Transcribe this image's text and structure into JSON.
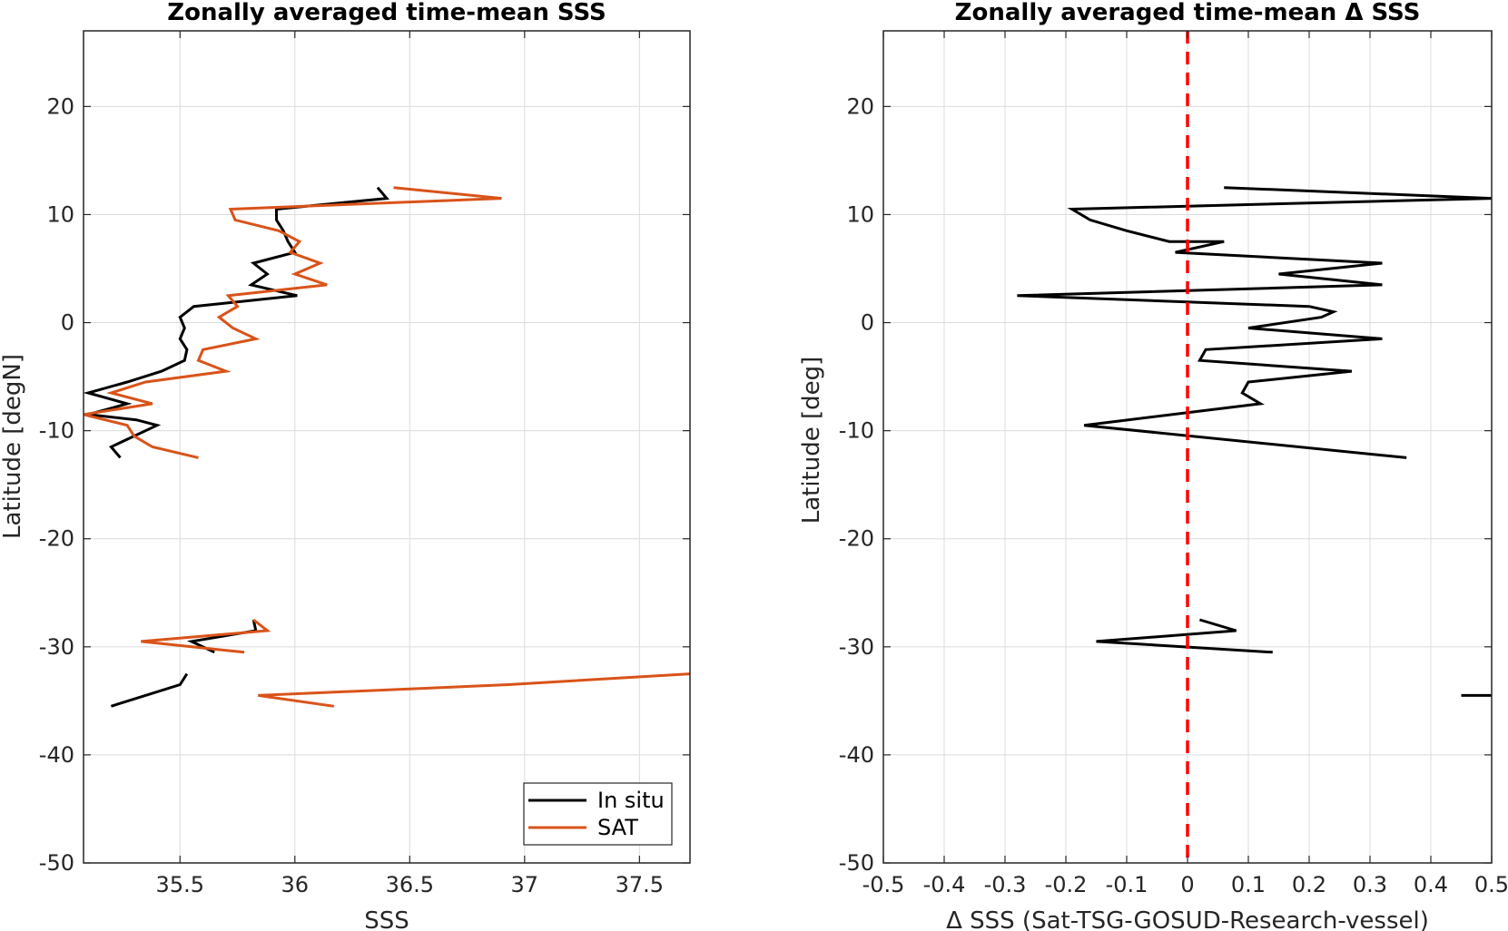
{
  "chart_data": [
    {
      "type": "line",
      "title": "Zonally averaged time-mean SSS",
      "xlabel": "SSS",
      "ylabel": "Latitude [degN]",
      "xlim": [
        35.08,
        37.72
      ],
      "ylim": [
        -50,
        27
      ],
      "xticks": [
        35.5,
        36,
        36.5,
        37,
        37.5
      ],
      "xtick_labels": [
        "35.5",
        "36",
        "36.5",
        "37",
        "37.5"
      ],
      "yticks": [
        -50,
        -40,
        -30,
        -20,
        -10,
        0,
        10,
        20
      ],
      "ytick_labels": [
        "-50",
        "-40",
        "-30",
        "-20",
        "-10",
        "0",
        "10",
        "20"
      ],
      "grid": true,
      "legend": "bottom-right",
      "series": [
        {
          "name": "In situ",
          "color": "#000000",
          "segments": [
            [
              [
                36.36,
                12.5
              ],
              [
                36.4,
                11.5
              ],
              [
                35.92,
                10.5
              ],
              [
                35.92,
                9.5
              ],
              [
                35.95,
                8.5
              ],
              [
                35.97,
                7.5
              ],
              [
                36.0,
                6.5
              ],
              [
                35.82,
                5.5
              ],
              [
                35.88,
                4.5
              ],
              [
                35.81,
                3.5
              ],
              [
                36.01,
                2.5
              ],
              [
                35.56,
                1.5
              ],
              [
                35.5,
                0.5
              ],
              [
                35.52,
                -0.5
              ],
              [
                35.5,
                -1.5
              ],
              [
                35.53,
                -2.5
              ],
              [
                35.52,
                -3.5
              ],
              [
                35.42,
                -4.5
              ],
              [
                35.27,
                -5.5
              ],
              [
                35.1,
                -6.5
              ],
              [
                35.27,
                -7.5
              ],
              [
                35.1,
                -8.5
              ],
              [
                35.31,
                -9.0
              ],
              [
                35.4,
                -9.5
              ],
              [
                35.2,
                -11.5
              ],
              [
                35.24,
                -12.5
              ]
            ],
            [
              [
                35.82,
                -27.5
              ],
              [
                35.83,
                -28.5
              ],
              [
                35.55,
                -29.5
              ],
              [
                35.65,
                -30.5
              ]
            ],
            [
              [
                35.53,
                -32.5
              ],
              [
                35.5,
                -33.5
              ],
              [
                35.2,
                -35.5
              ]
            ]
          ]
        },
        {
          "name": "SAT",
          "color": "#d95319",
          "segments": [
            [
              [
                36.43,
                12.5
              ],
              [
                36.9,
                11.5
              ],
              [
                35.72,
                10.5
              ],
              [
                35.74,
                9.5
              ],
              [
                35.93,
                8.5
              ],
              [
                36.02,
                7.5
              ],
              [
                35.98,
                6.5
              ],
              [
                36.11,
                5.5
              ],
              [
                36.0,
                4.5
              ],
              [
                36.14,
                3.5
              ],
              [
                35.71,
                2.5
              ],
              [
                35.75,
                1.5
              ],
              [
                35.67,
                0.5
              ],
              [
                35.73,
                -0.5
              ],
              [
                35.83,
                -1.5
              ],
              [
                35.6,
                -2.5
              ],
              [
                35.58,
                -3.5
              ],
              [
                35.7,
                -4.5
              ],
              [
                35.35,
                -5.5
              ],
              [
                35.2,
                -6.5
              ],
              [
                35.38,
                -7.5
              ],
              [
                35.08,
                -8.5
              ],
              [
                35.27,
                -9.5
              ],
              [
                35.3,
                -10.5
              ],
              [
                35.38,
                -11.5
              ],
              [
                35.58,
                -12.5
              ]
            ],
            [
              [
                35.82,
                -27.5
              ],
              [
                35.88,
                -28.5
              ],
              [
                35.33,
                -29.5
              ],
              [
                35.78,
                -30.5
              ]
            ],
            [
              [
                37.72,
                -32.5
              ],
              [
                36.93,
                -33.5
              ],
              [
                35.84,
                -34.5
              ],
              [
                36.17,
                -35.5
              ]
            ]
          ]
        }
      ]
    },
    {
      "type": "line",
      "title": "Zonally averaged time-mean Δ SSS",
      "xlabel": "Δ SSS (Sat-TSG-GOSUD-Research-vessel)",
      "ylabel": "Latitude [deg]",
      "xlim": [
        -0.5,
        0.5
      ],
      "ylim": [
        -50,
        27
      ],
      "xticks": [
        -0.5,
        -0.4,
        -0.3,
        -0.2,
        -0.1,
        0,
        0.1,
        0.2,
        0.3,
        0.4,
        0.5
      ],
      "xtick_labels": [
        "-0.5",
        "-0.4",
        "-0.3",
        "-0.2",
        "-0.1",
        "0",
        "0.1",
        "0.2",
        "0.3",
        "0.4",
        "0.5"
      ],
      "yticks": [
        -50,
        -40,
        -30,
        -20,
        -10,
        0,
        10,
        20
      ],
      "ytick_labels": [
        "-50",
        "-40",
        "-30",
        "-20",
        "-10",
        "0",
        "10",
        "20"
      ],
      "grid": true,
      "reference_line": {
        "x": 0,
        "color": "#ff0000",
        "style": "dashed"
      },
      "series": [
        {
          "color": "#000000",
          "segments": [
            [
              [
                0.06,
                12.5
              ],
              [
                0.5,
                11.5
              ],
              [
                -0.19,
                10.5
              ],
              [
                -0.16,
                9.5
              ],
              [
                -0.1,
                8.5
              ],
              [
                -0.03,
                7.5
              ],
              [
                0.06,
                7.5
              ],
              [
                -0.02,
                6.5
              ],
              [
                0.32,
                5.5
              ],
              [
                0.15,
                4.5
              ],
              [
                0.32,
                3.5
              ],
              [
                -0.28,
                2.5
              ],
              [
                0.2,
                1.5
              ],
              [
                0.24,
                1.0
              ],
              [
                0.22,
                0.5
              ],
              [
                0.1,
                -0.5
              ],
              [
                0.32,
                -1.5
              ],
              [
                0.03,
                -2.5
              ],
              [
                0.02,
                -3.5
              ],
              [
                0.27,
                -4.5
              ],
              [
                0.1,
                -5.5
              ],
              [
                0.09,
                -6.5
              ],
              [
                0.12,
                -7.5
              ],
              [
                -0.17,
                -9.5
              ],
              [
                0.36,
                -12.5
              ]
            ],
            [
              [
                0.02,
                -27.5
              ],
              [
                0.08,
                -28.5
              ],
              [
                -0.15,
                -29.5
              ],
              [
                0.14,
                -30.5
              ]
            ],
            [
              [
                0.45,
                -34.5
              ],
              [
                0.5,
                -34.5
              ]
            ]
          ]
        }
      ]
    }
  ]
}
